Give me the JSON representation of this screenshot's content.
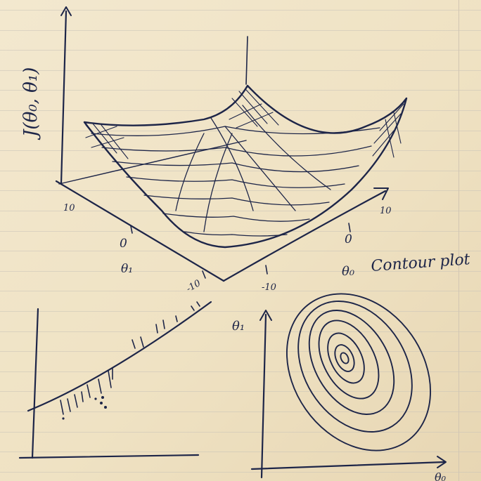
{
  "surface_plot": {
    "z_axis_label": "J(θ₀, θ₁)",
    "theta1_label": "θ₁",
    "theta0_label": "θ₀",
    "theta1_ticks": [
      "10",
      "0",
      "-10"
    ],
    "theta0_ticks": [
      "-10",
      "0",
      "10"
    ]
  },
  "contour_plot": {
    "title": "Contour plot",
    "y_axis_label": "θ₁",
    "x_axis_label": "θ₀"
  },
  "ink_color": "#1d2548",
  "paper_color": "#efe2c4"
}
